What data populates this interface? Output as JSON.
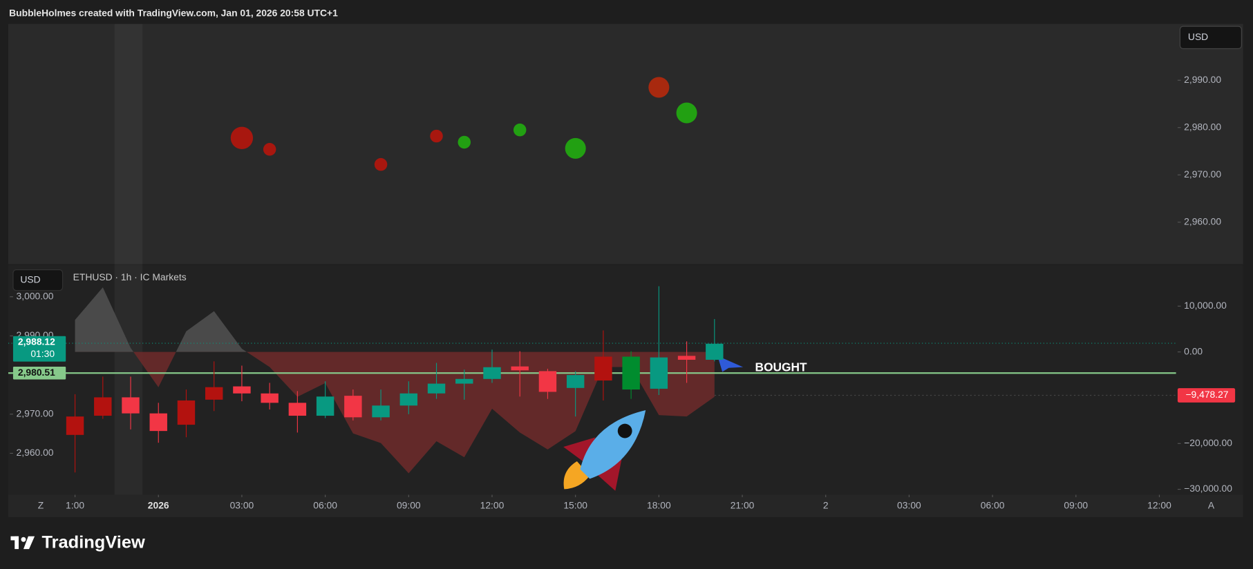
{
  "header": "BubbleHolmes created with TradingView.com, Jan 01, 2026 20:58 UTC+1",
  "logo": "TradingView",
  "chart_data": [
    {
      "type": "scatter",
      "currency": "USD",
      "x": [
        3,
        4,
        8,
        10,
        11,
        13,
        15,
        18,
        19
      ],
      "values": [
        2977.8,
        2975.4,
        2972.2,
        2978.2,
        2976.9,
        2979.5,
        2975.6,
        2988.5,
        2983.1
      ],
      "sizes": [
        14,
        8,
        8,
        8,
        8,
        8,
        13,
        13,
        13
      ],
      "colors": [
        "#a8170f",
        "#a8170f",
        "#a8170f",
        "#a8170f",
        "#22a012",
        "#22a012",
        "#22a012",
        "#a8290f",
        "#22a012"
      ],
      "xlim": [
        -5.4,
        36.6
      ],
      "ylim": [
        2951.3,
        3001.9
      ],
      "yticks": [
        {
          "value": 2990,
          "label": "2,990.00"
        },
        {
          "value": 2980,
          "label": "2,980.00"
        },
        {
          "value": 2970,
          "label": "2,970.00"
        },
        {
          "value": 2960,
          "label": "2,960.00"
        }
      ]
    },
    {
      "type": "candlestick",
      "currency": "USD",
      "symbol_label": "ETHUSD · 1h · IC Markets",
      "x": [
        -3,
        -2,
        -1,
        0,
        1,
        2,
        3,
        4,
        5,
        6,
        7,
        8,
        9,
        10,
        11,
        12,
        13,
        14,
        15,
        16,
        17,
        18,
        19,
        20
      ],
      "open": [
        2969.4,
        2974.3,
        2974.3,
        2970.2,
        2973.5,
        2976.9,
        2977.1,
        2975.3,
        2972.9,
        2969.6,
        2974.7,
        2969.2,
        2972.2,
        2975.3,
        2977.8,
        2979.0,
        2982.2,
        2981.0,
        2976.7,
        2984.7,
        2976.3,
        2976.5,
        2984.9,
        2983.9
      ],
      "high": [
        2975.1,
        2979.6,
        2979.6,
        2972.9,
        2976.3,
        2983.5,
        2982.4,
        2978.0,
        2975.9,
        2978.4,
        2976.3,
        2976.3,
        2978.4,
        2983.1,
        2981.4,
        2986.5,
        2986.1,
        2981.6,
        2981.0,
        2991.4,
        2986.1,
        3002.7,
        2988.6,
        2994.3
      ],
      "low": [
        2955.1,
        2968.8,
        2966.1,
        2962.7,
        2964.1,
        2970.8,
        2973.3,
        2971.2,
        2965.3,
        2969.0,
        2968.4,
        2968.4,
        2970.0,
        2973.9,
        2973.7,
        2978.0,
        2974.5,
        2973.9,
        2969.4,
        2973.5,
        2973.9,
        2974.9,
        2978.0,
        2983.5
      ],
      "close": [
        2964.7,
        2969.6,
        2970.2,
        2965.7,
        2967.3,
        2973.7,
        2975.3,
        2972.9,
        2969.6,
        2974.5,
        2969.2,
        2972.2,
        2975.3,
        2977.8,
        2979.0,
        2982.0,
        2981.2,
        2975.7,
        2980.0,
        2978.6,
        2984.7,
        2984.5,
        2983.9,
        2988.0
      ],
      "colors": [
        "#b3120f",
        "#b3120f",
        "#f23645",
        "#f23645",
        "#b3120f",
        "#b3120f",
        "#f23645",
        "#f23645",
        "#f23645",
        "#089981",
        "#f23645",
        "#089981",
        "#089981",
        "#089981",
        "#089981",
        "#089981",
        "#f23645",
        "#f23645",
        "#089981",
        "#b3120f",
        "#008c2e",
        "#089981",
        "#f23645",
        "#089981"
      ],
      "series": [
        {
          "axis": "y2",
          "values": [
            7000,
            14100,
            870,
            -7700,
            4500,
            8900,
            700,
            -3300,
            -9800,
            -6800,
            -17800,
            -19900,
            -26500,
            -19500,
            -23000,
            -12400,
            -17600,
            -21300,
            -17300,
            -3300,
            -3300,
            -13800,
            -14100,
            -9800
          ],
          "color_above": "#4e4e4e",
          "color_below": "#6a2a2a"
        }
      ],
      "xlim": [
        -5.4,
        36.6
      ],
      "xticks": [
        {
          "value": -3,
          "label": "1:00"
        },
        {
          "value": 0,
          "label": "2026"
        },
        {
          "value": 3,
          "label": "03:00"
        },
        {
          "value": 6,
          "label": "06:00"
        },
        {
          "value": 9,
          "label": "09:00"
        },
        {
          "value": 12,
          "label": "12:00"
        },
        {
          "value": 15,
          "label": "15:00"
        },
        {
          "value": 18,
          "label": "18:00"
        },
        {
          "value": 21,
          "label": "21:00"
        },
        {
          "value": 24,
          "label": "2"
        },
        {
          "value": 27,
          "label": "03:00"
        },
        {
          "value": 30,
          "label": "06:00"
        },
        {
          "value": 33,
          "label": "09:00"
        },
        {
          "value": 36,
          "label": "12:00"
        }
      ],
      "ylim": [
        2949.4,
        3006.5
      ],
      "yticks": [
        {
          "value": 3000,
          "label": "3,000.00"
        },
        {
          "value": 2990,
          "label": "2,990.00"
        },
        {
          "value": 2970,
          "label": "2,970.00"
        },
        {
          "value": 2960,
          "label": "2,960.00"
        }
      ],
      "y2lim": [
        -31200,
        17600
      ],
      "y2ticks": [
        {
          "value": 10000,
          "label": "10,000.00"
        },
        {
          "value": 0,
          "label": "0.00"
        },
        {
          "value": -20000,
          "label": "−20,000.00"
        },
        {
          "value": -30000,
          "label": "−30,000.00"
        }
      ],
      "price_lines": [
        {
          "value": 2988.12,
          "label": "2,988.12",
          "sublabel": "01:30",
          "color": "#089981"
        },
        {
          "value": 2980.51,
          "label": "2,980.51",
          "color": "#86c98a"
        }
      ],
      "y2_price_line": {
        "value": -9478.27,
        "label": "−9,478.27",
        "color": "#f23645"
      },
      "annotation": "BOUGHT"
    }
  ]
}
